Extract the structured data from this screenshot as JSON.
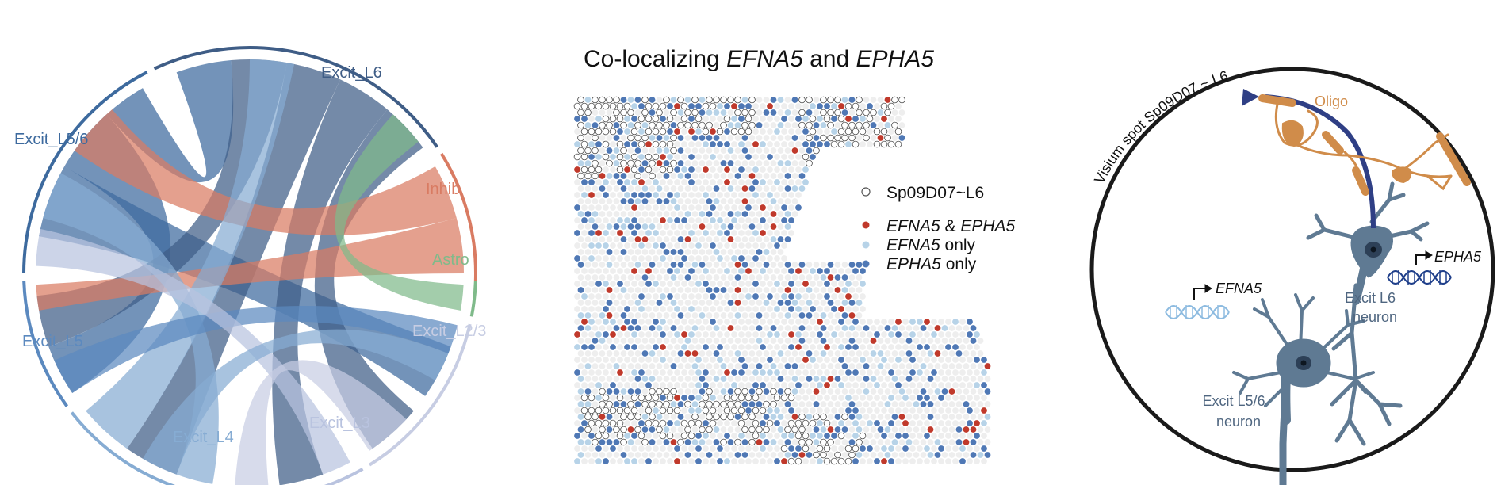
{
  "chord": {
    "segments": [
      {
        "name": "Excit_L6",
        "color": "#3f5d86"
      },
      {
        "name": "Inhib",
        "color": "#d97b62"
      },
      {
        "name": "Astro",
        "color": "#7fba8a"
      },
      {
        "name": "Excit_L2/3",
        "color": "#c7cde3"
      },
      {
        "name": "Excit_L3",
        "color": "#b9c3df"
      },
      {
        "name": "Excit_L4",
        "color": "#86acd3"
      },
      {
        "name": "Excit_L5",
        "color": "#5b89bf"
      },
      {
        "name": "Excit_L5/6",
        "color": "#3d6a9e"
      }
    ]
  },
  "spatial": {
    "title_prefix": "Co-localizing ",
    "title_gene1": "EFNA5",
    "title_mid": " and ",
    "title_gene2": "EPHA5",
    "legend": {
      "spot_label": "Sp09D07~L6",
      "both_gene1": "EFNA5",
      "both_sep": " & ",
      "both_gene2": "EPHA5",
      "efna5_gene": "EFNA5",
      "efna5_suffix": " only",
      "epha5_gene": "EPHA5",
      "epha5_suffix": " only"
    },
    "colors": {
      "both": "#c0392b",
      "efna5_only": "#b7d3e8",
      "epha5_only": "#4f78b5",
      "background_spot": "#eeeeee"
    }
  },
  "cartoon": {
    "circle_label": "Visium spot Sp09D07 ~ L6",
    "oligo_label": "Oligo",
    "efna5_label": "EFNA5",
    "epha5_label": "EPHA5",
    "l6_label_line1": "Excit L6",
    "l6_label_line2": "neuron",
    "l56_label_line1": "Excit L5/6",
    "l56_label_line2": "neuron"
  }
}
